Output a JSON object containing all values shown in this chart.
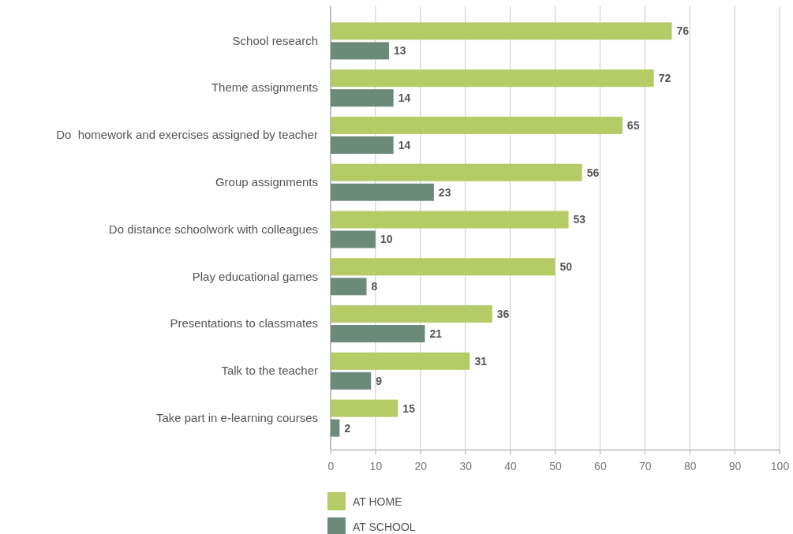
{
  "chart_data": {
    "type": "bar",
    "orientation": "horizontal",
    "categories": [
      "School research",
      "Theme assignments",
      "Do  homework and exercises assigned by teacher",
      "Group assignments",
      "Do distance schoolwork with colleagues",
      "Play educational games",
      "Presentations to classmates",
      "Talk to the teacher",
      "Take part in e-learning courses"
    ],
    "series": [
      {
        "name": "AT HOME",
        "color": "#b5cb66",
        "values": [
          76,
          72,
          65,
          56,
          53,
          50,
          36,
          31,
          15
        ]
      },
      {
        "name": "AT SCHOOL",
        "color": "#6b8a7a",
        "values": [
          13,
          14,
          14,
          23,
          10,
          8,
          21,
          9,
          2
        ]
      }
    ],
    "xlim": [
      0,
      100
    ],
    "xticks": [
      0,
      10,
      20,
      30,
      40,
      50,
      60,
      70,
      80,
      90,
      100
    ],
    "grid": "x",
    "legend": "bottom",
    "data_labels": true
  }
}
